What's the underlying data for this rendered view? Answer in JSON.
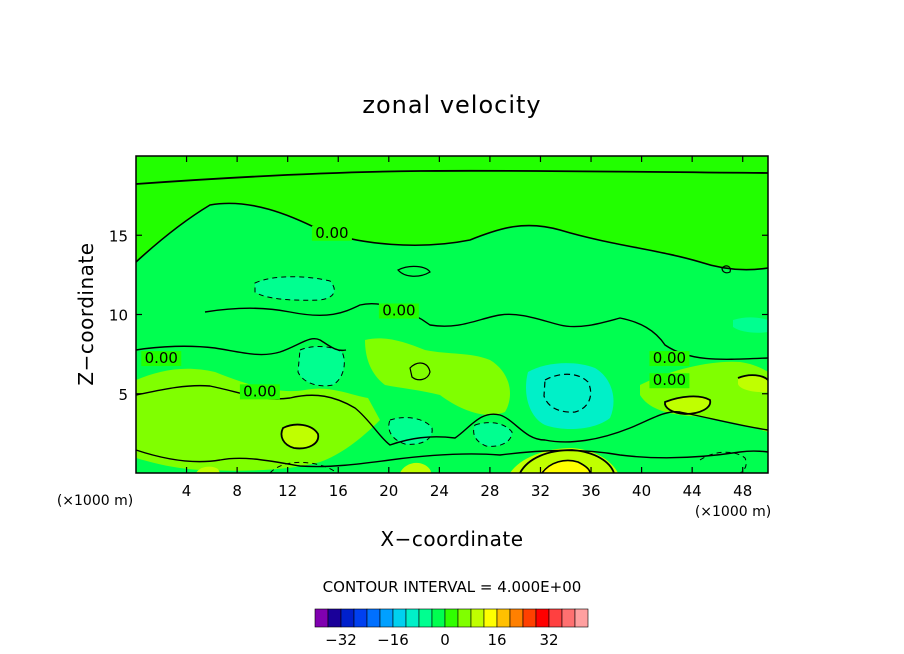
{
  "chart_data": {
    "type": "contour",
    "title": "zonal velocity",
    "xlabel": "X−coordinate",
    "ylabel": "Z−coordinate",
    "x_unit": "(×1000 m)",
    "y_unit": "(×1000 m)",
    "xlim": [
      0,
      50
    ],
    "ylim": [
      0,
      20
    ],
    "x_ticks": [
      4,
      8,
      12,
      16,
      20,
      24,
      28,
      32,
      36,
      40,
      44,
      48
    ],
    "x_tick_labels": [
      "4",
      "8",
      "12",
      "16",
      "20",
      "24",
      "28",
      "32",
      "36",
      "40",
      "44",
      "48"
    ],
    "y_ticks": [
      5,
      10,
      15
    ],
    "y_tick_labels": [
      "5",
      "10",
      "15"
    ],
    "contour_interval_text": "CONTOUR INTERVAL =  4.000E+00",
    "contour_interval": 4,
    "contour_labels": [
      {
        "text": "0.00",
        "x": 15.5,
        "z": 14.9
      },
      {
        "text": "0.00",
        "x": 20.8,
        "z": 10.0
      },
      {
        "text": "0.00",
        "x": 2.0,
        "z": 7.0
      },
      {
        "text": "0.00",
        "x": 9.8,
        "z": 4.9
      },
      {
        "text": "0.00",
        "x": 42.2,
        "z": 7.0
      },
      {
        "text": "0.00",
        "x": 42.2,
        "z": 5.6
      }
    ],
    "colorbar": {
      "colors": [
        "#8000b0",
        "#1a0099",
        "#0020cc",
        "#0040f0",
        "#0070ff",
        "#00a0ff",
        "#00d0f0",
        "#00f0c8",
        "#00ff90",
        "#00ff50",
        "#30ff00",
        "#80ff00",
        "#c0ff00",
        "#ffff00",
        "#ffc000",
        "#ff8000",
        "#ff4000",
        "#ff0000",
        "#ff4040",
        "#ff7070",
        "#ffa0a0"
      ],
      "tick_values": [
        -32,
        -16,
        0,
        16,
        32
      ],
      "tick_labels": [
        "−32",
        "−16",
        "0",
        "16",
        "32"
      ],
      "min": -40,
      "max": 44
    },
    "fill_colors": {
      "background": "#22ff00",
      "positive": "#00ff50",
      "weak_negative": "#00ff90",
      "strong_negative": "#00f0c8",
      "weak_positive": "#80ff00",
      "strong_positive": "#c0ff00",
      "max_positive": "#ffff00"
    }
  }
}
